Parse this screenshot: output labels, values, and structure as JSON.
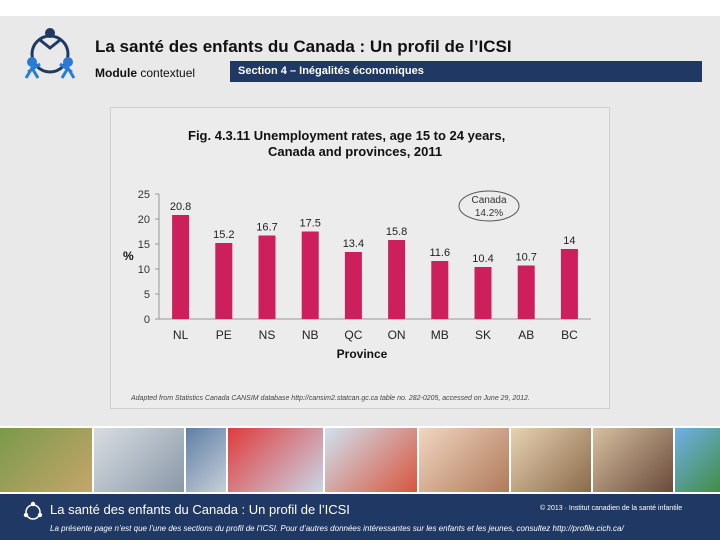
{
  "header": {
    "title": "La santé des enfants du Canada : Un profil de l’ICSI",
    "module_bold": "Module",
    "module_rest": "contextuel",
    "section": "Section 4 – Inégalités économiques"
  },
  "colors": {
    "brand": "#1f3864",
    "bar": "#cc1f5c"
  },
  "chart_data": {
    "type": "bar",
    "title_line1": "Fig. 4.3.11  Unemployment rates, age 15 to 24 years,",
    "title_line2": "Canada and provinces, 2011",
    "categories": [
      "NL",
      "PE",
      "NS",
      "NB",
      "QC",
      "ON",
      "MB",
      "SK",
      "AB",
      "BC"
    ],
    "values": [
      20.8,
      15.2,
      16.7,
      17.5,
      13.4,
      15.8,
      11.6,
      10.4,
      10.7,
      14
    ],
    "value_labels": [
      "20.8",
      "15.2",
      "16.7",
      "17.5",
      "13.4",
      "15.8",
      "11.6",
      "10.4",
      "10.7",
      "14"
    ],
    "xlabel": "Province",
    "ylabel": "%",
    "ylim": [
      0,
      25
    ],
    "yticks": [
      "0",
      "5",
      "10",
      "15",
      "20",
      "25"
    ],
    "annotation_label": "Canada",
    "annotation_value": "14.2%",
    "source": "Adapted from Statistics Canada CANSIM database http://cansim2.statcan.gc.ca table no. 282-0205, accessed on June 29, 2012."
  },
  "footer": {
    "title": "La santé des enfants du Canada : Un profil de l’ICSI",
    "copyright": "© 2013 · Institut canadien de la santé infantile",
    "note": "La présente page n’est que l’une des sections du profil de l’ICSI. Pour d’autres données intéressantes sur les enfants et les jeunes, consultez http://profile.cich.ca/"
  }
}
